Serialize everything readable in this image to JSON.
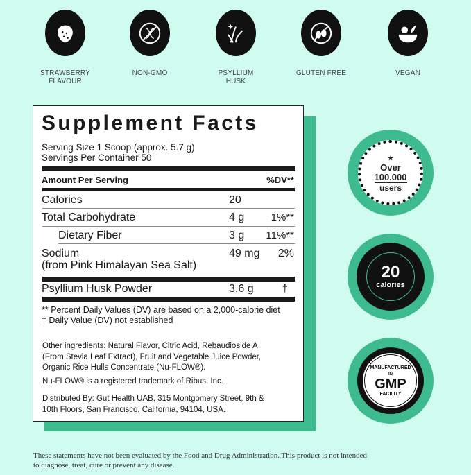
{
  "features": [
    {
      "icon": "strawberry-icon",
      "label1": "STRAWBERRY",
      "label2": "FLAVOUR"
    },
    {
      "icon": "non-gmo-icon",
      "label1": "NON-GMO",
      "label2": ""
    },
    {
      "icon": "psyllium-icon",
      "label1": "PSYLLIUM",
      "label2": "HUSK"
    },
    {
      "icon": "gluten-free-icon",
      "label1": "GLUTEN FREE",
      "label2": ""
    },
    {
      "icon": "vegan-icon",
      "label1": "VEGAN",
      "label2": ""
    }
  ],
  "facts": {
    "title": "Supplement Facts",
    "serving_size": "Serving Size 1 Scoop (approx. 5.7 g)",
    "servings_per_container": "Servings Per Container 50",
    "header_amount": "Amount Per Serving",
    "header_dv": "%DV**",
    "rows": [
      {
        "name": "Calories",
        "amount": "20",
        "dv": ""
      },
      {
        "name": "Total Carbohydrate",
        "amount": "4 g",
        "dv": "1%**"
      },
      {
        "name": "Dietary Fiber",
        "amount": "3 g",
        "dv": "11%**"
      },
      {
        "name": "Sodium",
        "sub": "(from Pink Himalayan Sea Salt)",
        "amount": "49 mg",
        "dv": "2%"
      },
      {
        "name": "Psyllium Husk Powder",
        "amount": "3.6 g",
        "dv": "†"
      }
    ],
    "footnote1": "** Percent Daily Values (DV) are based on a 2,000-calorie diet",
    "footnote2": "† Daily Value (DV) not established",
    "ingredients": [
      "Other ingredients: Natural Flavor, Citric Acid, Rebaudioside A",
      "(From Stevia Leaf Extract), Fruit and Vegetable Juice Powder,",
      "Organic Rice Hulls Concentrate (Nu-FLOW®)."
    ],
    "trademark": "Nu-FLOW® is a registered trademark of Ribus, Inc.",
    "distributor": [
      "Distributed By: Gut Health UAB, 315 Montgomery Street, 9th &",
      "10th Floors, San Francisco, California, 94104, USA."
    ]
  },
  "badges": {
    "users": {
      "line1": "Over",
      "line2": "100.000",
      "line3": "users"
    },
    "calories": {
      "number": "20",
      "unit": "calories"
    },
    "gmp": {
      "top": "MANUFACTURED",
      "mid": "IN",
      "main": "GMP",
      "bottom": "FACILITY"
    }
  },
  "disclaimer": [
    "These statements have not been evaluated by the Food and Drug Administration. This product is not intended",
    "to diagnose, treat, cure or prevent any disease."
  ],
  "colors": {
    "background": "#cffcef",
    "accent": "#3dbb8f",
    "dark": "#111111"
  }
}
